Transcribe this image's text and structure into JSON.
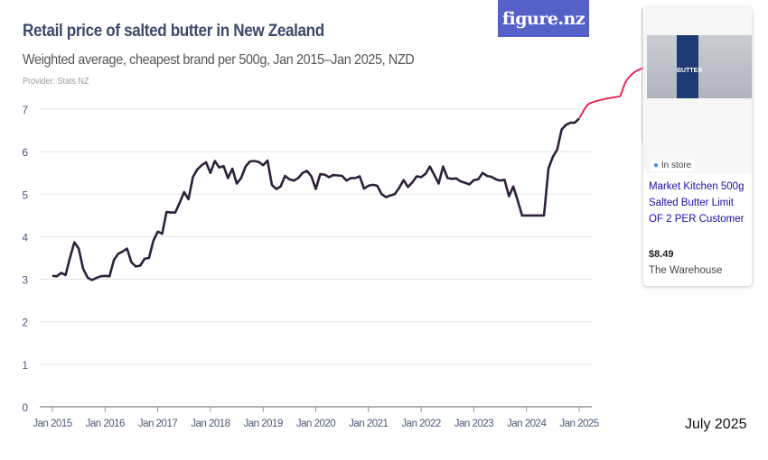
{
  "header": {
    "title": "Retail price of salted butter in New Zealand",
    "subtitle": "Weighted average, cheapest brand per 500g, Jan 2015–Jan 2025, NZD",
    "provider": "Provider: Stats NZ",
    "logo": "figure.nz"
  },
  "date_stamp": "July 2025",
  "product_card": {
    "badge": "In store",
    "name": "Market Kitchen 500g Salted Butter Limit OF 2 PER Customer",
    "price": "$8.49",
    "store": "The Warehouse",
    "package_text": "BUTTER"
  },
  "colors": {
    "line": "#2e1f3a",
    "annotation": "#e8174a",
    "logo_bg": "#5660c9",
    "title": "#3b4a6b"
  },
  "chart_data": {
    "type": "line",
    "title": "Retail price of salted butter in New Zealand",
    "ylim": [
      0,
      7
    ],
    "yticks": [
      "0",
      "1",
      "2",
      "3",
      "4",
      "5",
      "6",
      "7"
    ],
    "xticks": [
      "Jan 2015",
      "Jan 2016",
      "Jan 2017",
      "Jan 2018",
      "Jan 2019",
      "Jan 2020",
      "Jan 2021",
      "Jan 2022",
      "Jan 2023",
      "Jan 2024",
      "Jan 2025"
    ],
    "x_start": "Jan 2015",
    "x_frequency": "monthly",
    "grid": true,
    "values": [
      3.08,
      3.07,
      3.15,
      3.1,
      3.5,
      3.87,
      3.72,
      3.25,
      3.04,
      2.98,
      3.03,
      3.07,
      3.08,
      3.07,
      3.45,
      3.6,
      3.65,
      3.72,
      3.4,
      3.3,
      3.32,
      3.48,
      3.5,
      3.9,
      4.12,
      4.07,
      4.58,
      4.57,
      4.57,
      4.8,
      5.05,
      4.88,
      5.4,
      5.58,
      5.68,
      5.75,
      5.5,
      5.78,
      5.63,
      5.66,
      5.38,
      5.6,
      5.25,
      5.38,
      5.65,
      5.77,
      5.78,
      5.76,
      5.68,
      5.79,
      5.22,
      5.12,
      5.18,
      5.43,
      5.35,
      5.32,
      5.38,
      5.5,
      5.55,
      5.42,
      5.12,
      5.47,
      5.46,
      5.4,
      5.45,
      5.44,
      5.43,
      5.32,
      5.38,
      5.38,
      5.42,
      5.13,
      5.2,
      5.22,
      5.2,
      5.0,
      4.93,
      4.97,
      5.0,
      5.15,
      5.33,
      5.17,
      5.28,
      5.42,
      5.4,
      5.48,
      5.65,
      5.45,
      5.25,
      5.65,
      5.38,
      5.36,
      5.37,
      5.3,
      5.27,
      5.23,
      5.33,
      5.35,
      5.5,
      5.43,
      5.41,
      5.35,
      5.32,
      5.34,
      4.95,
      5.18,
      4.85,
      4.5,
      4.5,
      4.5,
      4.5,
      4.5,
      4.5,
      5.6,
      5.88,
      6.05,
      6.52,
      6.63,
      6.68,
      6.68,
      6.78
    ]
  }
}
